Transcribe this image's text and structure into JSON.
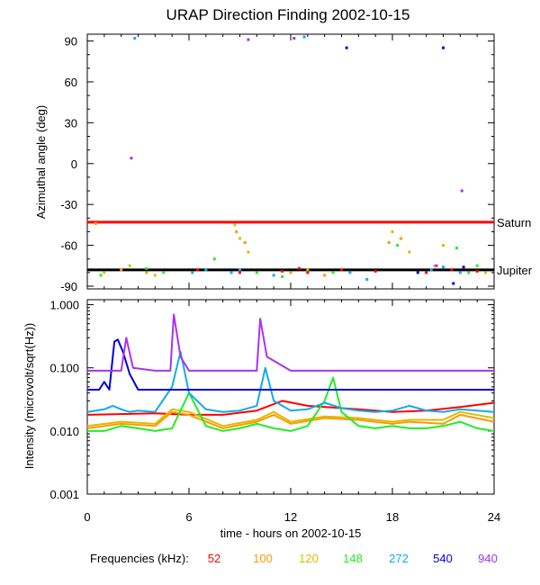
{
  "title": "URAP Direction Finding  2002-10-15",
  "xlabel": "time - hours on 2002-10-15",
  "freq_legend": {
    "label": "Frequencies (kHz):",
    "items": [
      {
        "text": "52",
        "color": "#ff0000"
      },
      {
        "text": "100",
        "color": "#ff9900"
      },
      {
        "text": "120",
        "color": "#ddbb00"
      },
      {
        "text": "148",
        "color": "#22ee22"
      },
      {
        "text": "272",
        "color": "#11aaee"
      },
      {
        "text": "540",
        "color": "#0000dd"
      },
      {
        "text": "940",
        "color": "#aa33ee"
      }
    ]
  },
  "chart_data": [
    {
      "type": "scatter",
      "ylabel": "Azimuthal angle (deg)",
      "xlim": [
        0,
        24
      ],
      "ylim": [
        -92,
        95
      ],
      "xticks": [
        "0",
        "6",
        "12",
        "18",
        "24"
      ],
      "yticks": [
        "90",
        "60",
        "30",
        "0",
        "-30",
        "-60",
        "-90"
      ],
      "reference_lines": [
        {
          "name": "Saturn",
          "y": -43,
          "color": "#ff0000"
        },
        {
          "name": "Jupiter",
          "y": -78,
          "color": "#000000"
        }
      ],
      "series": [
        {
          "color": "#ff0000",
          "x": [
            6.5,
            9.0,
            11.5,
            12.5,
            13.0,
            15.0,
            17.0,
            20.0,
            21.5,
            23.0
          ],
          "y": [
            -78,
            -80,
            -79,
            -77,
            -80,
            -78,
            -79,
            -80,
            -78,
            -79
          ]
        },
        {
          "color": "#ff9900",
          "x": [
            0.5,
            2.0,
            3.5,
            8.8,
            9.3,
            12.0,
            14.0,
            17.8,
            18.5,
            20.5
          ],
          "y": [
            -44,
            -78,
            -80,
            -50,
            -58,
            -80,
            -82,
            -58,
            -55,
            -75
          ]
        },
        {
          "color": "#ddbb00",
          "x": [
            1.0,
            2.5,
            4.0,
            8.7,
            9.0,
            9.5,
            13.0,
            18.0,
            19.0,
            21.0,
            23.5
          ],
          "y": [
            -80,
            -75,
            -82,
            -45,
            -55,
            -65,
            -78,
            -50,
            -65,
            -60,
            -80
          ]
        },
        {
          "color": "#22ee22",
          "x": [
            0.8,
            3.5,
            4.5,
            7.5,
            10.0,
            11.5,
            14.5,
            18.3,
            21.8,
            22.5,
            23.0
          ],
          "y": [
            -82,
            -77,
            -80,
            -70,
            -80,
            -83,
            -80,
            -60,
            -62,
            -80,
            -75
          ]
        },
        {
          "color": "#11aaee",
          "x": [
            2.8,
            6.2,
            7.0,
            8.5,
            9.0,
            11.0,
            12.8,
            15.5,
            16.5,
            20.3,
            21.0,
            22.0
          ],
          "y": [
            92,
            -80,
            -78,
            -80,
            -78,
            -82,
            93,
            -80,
            -85,
            -78,
            -76,
            -80
          ]
        },
        {
          "color": "#0000dd",
          "x": [
            15.3,
            19.5,
            21.0,
            21.6,
            22.2
          ],
          "y": [
            85,
            -80,
            85,
            -88,
            -76
          ]
        },
        {
          "color": "#aa33ee",
          "x": [
            2.6,
            9.5,
            12.2,
            20.6,
            22.1
          ],
          "y": [
            4,
            91,
            92,
            -75,
            -20
          ]
        }
      ]
    },
    {
      "type": "line",
      "ylabel": "Intensity (microvolt/sqrt(Hz))",
      "xlim": [
        0,
        24
      ],
      "ylim": [
        0.001,
        1.2
      ],
      "yscale": "log",
      "yticks": [
        "1.000",
        "0.100",
        "0.010",
        "0.001"
      ],
      "series": [
        {
          "color": "#ff0000",
          "x": [
            0,
            4,
            6,
            8,
            10,
            11.5,
            13,
            16,
            18,
            20,
            22,
            24
          ],
          "y": [
            0.018,
            0.019,
            0.018,
            0.018,
            0.021,
            0.03,
            0.025,
            0.022,
            0.02,
            0.021,
            0.024,
            0.028
          ]
        },
        {
          "color": "#ff9900",
          "x": [
            0,
            2,
            4,
            5,
            6,
            8,
            10,
            11,
            12,
            14,
            16,
            18,
            19,
            21,
            22,
            24
          ],
          "y": [
            0.011,
            0.013,
            0.012,
            0.02,
            0.018,
            0.011,
            0.014,
            0.018,
            0.013,
            0.016,
            0.015,
            0.013,
            0.014,
            0.013,
            0.018,
            0.014
          ]
        },
        {
          "color": "#ddbb00",
          "x": [
            0,
            2,
            4,
            5,
            6,
            8,
            10,
            11,
            12,
            14,
            16,
            18,
            19,
            21,
            22,
            24
          ],
          "y": [
            0.012,
            0.014,
            0.013,
            0.022,
            0.02,
            0.012,
            0.015,
            0.02,
            0.014,
            0.017,
            0.016,
            0.014,
            0.015,
            0.015,
            0.02,
            0.016
          ]
        },
        {
          "color": "#22ee22",
          "x": [
            0,
            1,
            2,
            3,
            4,
            5,
            6,
            7,
            8,
            9,
            10,
            11,
            12,
            13,
            14,
            14.5,
            15,
            16,
            17,
            18,
            19,
            20,
            21,
            22,
            23,
            24
          ],
          "y": [
            0.01,
            0.01,
            0.012,
            0.011,
            0.01,
            0.011,
            0.04,
            0.012,
            0.01,
            0.011,
            0.013,
            0.011,
            0.01,
            0.012,
            0.03,
            0.07,
            0.02,
            0.012,
            0.011,
            0.012,
            0.011,
            0.011,
            0.012,
            0.014,
            0.011,
            0.01
          ]
        },
        {
          "color": "#11aaee",
          "x": [
            0,
            1,
            1.5,
            2,
            2.5,
            3,
            4,
            5,
            5.5,
            6,
            7,
            8,
            9,
            10,
            10.5,
            11,
            12,
            13,
            14,
            15,
            16,
            17,
            18,
            19,
            20,
            21,
            22,
            23,
            24
          ],
          "y": [
            0.02,
            0.022,
            0.025,
            0.022,
            0.02,
            0.021,
            0.02,
            0.05,
            0.18,
            0.04,
            0.022,
            0.02,
            0.021,
            0.025,
            0.1,
            0.03,
            0.021,
            0.022,
            0.028,
            0.023,
            0.021,
            0.02,
            0.021,
            0.025,
            0.021,
            0.02,
            0.022,
            0.021,
            0.02
          ]
        },
        {
          "color": "#0000dd",
          "x": [
            0,
            0.7,
            1.0,
            1.3,
            1.6,
            1.8,
            2.1,
            2.5,
            3.0,
            3.5,
            4,
            6,
            8,
            10,
            12,
            14,
            16,
            18,
            20,
            22,
            24
          ],
          "y": [
            0.045,
            0.045,
            0.06,
            0.045,
            0.26,
            0.28,
            0.18,
            0.08,
            0.045,
            0.045,
            0.045,
            0.045,
            0.045,
            0.045,
            0.045,
            0.045,
            0.045,
            0.045,
            0.045,
            0.045,
            0.045
          ]
        },
        {
          "color": "#aa33ee",
          "x": [
            0,
            2.0,
            2.3,
            2.7,
            4,
            4.9,
            5.1,
            5.5,
            6,
            8,
            10.0,
            10.2,
            10.6,
            12,
            16,
            18,
            20,
            22,
            24
          ],
          "y": [
            0.09,
            0.09,
            0.3,
            0.1,
            0.09,
            0.09,
            0.7,
            0.15,
            0.09,
            0.09,
            0.09,
            0.6,
            0.15,
            0.09,
            0.09,
            0.09,
            0.09,
            0.09,
            0.09
          ]
        }
      ]
    }
  ]
}
